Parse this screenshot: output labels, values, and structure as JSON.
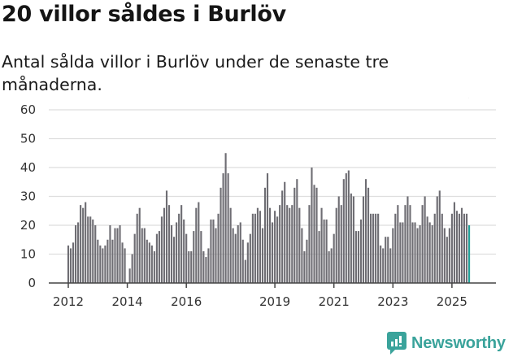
{
  "header": {
    "title": "20 villor såldes i Burlöv",
    "subtitle": "Antal sålda villor i Burlöv under de senaste tre månaderna."
  },
  "brand": {
    "name": "Newsworthy",
    "color": "#3aa39b"
  },
  "colors": {
    "bar": "#6e6d73",
    "highlight": "#21a097",
    "grid": "#dedede",
    "axis": "#444444"
  },
  "chart_data": {
    "type": "bar",
    "title": "20 villor såldes i Burlöv",
    "subtitle": "Antal sålda villor i Burlöv under de senaste tre månaderna.",
    "xlabel": "",
    "ylabel": "",
    "ylim": [
      0,
      60
    ],
    "yticks": [
      0,
      10,
      20,
      30,
      40,
      50,
      60
    ],
    "xticks": [
      "2012",
      "2014",
      "2016",
      "2019",
      "2021",
      "2023",
      "2025"
    ],
    "grid": true,
    "legend": null,
    "start": "2012-01",
    "frequency": "monthly",
    "annotation": {
      "label": "20",
      "index": 164
    },
    "values": [
      13,
      12,
      14,
      20,
      21,
      27,
      26,
      28,
      23,
      23,
      22,
      20,
      15,
      13,
      12,
      13,
      15,
      20,
      15,
      19,
      19,
      20,
      14,
      12,
      0,
      5,
      10,
      17,
      24,
      26,
      19,
      19,
      15,
      14,
      13,
      11,
      17,
      18,
      23,
      26,
      32,
      27,
      20,
      16,
      21,
      24,
      27,
      22,
      17,
      11,
      11,
      18,
      26,
      28,
      18,
      11,
      9,
      12,
      22,
      22,
      19,
      24,
      33,
      38,
      45,
      38,
      26,
      19,
      17,
      20,
      21,
      15,
      8,
      14,
      17,
      24,
      24,
      26,
      25,
      19,
      33,
      38,
      26,
      21,
      25,
      23,
      27,
      32,
      35,
      27,
      26,
      27,
      33,
      36,
      26,
      19,
      11,
      15,
      27,
      40,
      34,
      33,
      18,
      26,
      22,
      22,
      11,
      12,
      17,
      26,
      30,
      27,
      36,
      38,
      39,
      31,
      30,
      18,
      18,
      22,
      30,
      36,
      33,
      24,
      24,
      24,
      24,
      13,
      12,
      16,
      16,
      12,
      19,
      24,
      27,
      21,
      21,
      27,
      30,
      27,
      21,
      21,
      19,
      20,
      27,
      30,
      23,
      21,
      20,
      24,
      30,
      32,
      24,
      19,
      16,
      19,
      24,
      28,
      25,
      24,
      26,
      24,
      24,
      20
    ]
  }
}
